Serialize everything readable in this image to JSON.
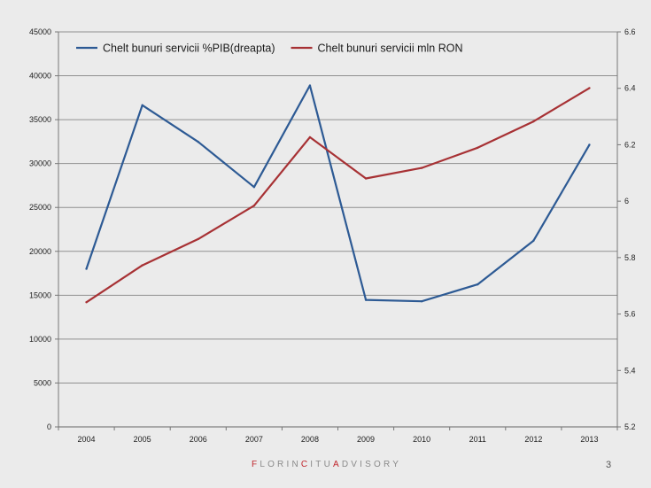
{
  "chart_data": {
    "type": "line",
    "x": [
      "2004",
      "2005",
      "2006",
      "2007",
      "2008",
      "2009",
      "2010",
      "2011",
      "2012",
      "2013"
    ],
    "series": [
      {
        "name": "Chelt bunuri servicii %PIB(dreapta)",
        "axis": "right",
        "color": "#2d5a94",
        "values": [
          5.76,
          6.34,
          6.21,
          6.05,
          6.41,
          5.65,
          5.645,
          5.705,
          5.86,
          6.2
        ]
      },
      {
        "name": "Chelt bunuri servicii mln RON",
        "axis": "left",
        "color": "#a73134",
        "values": [
          14200,
          18400,
          21400,
          25200,
          33000,
          28300,
          29500,
          31800,
          34800,
          38600
        ]
      }
    ],
    "y_left": {
      "ylim": [
        0,
        45000
      ],
      "ticks": [
        "0",
        "5000",
        "10000",
        "15000",
        "20000",
        "25000",
        "30000",
        "35000",
        "40000",
        "45000"
      ]
    },
    "y_right": {
      "ylim": [
        5.2,
        6.6
      ],
      "ticks": [
        "5.2",
        "5.4",
        "5.6",
        "5.8",
        "6",
        "6.2",
        "6.4",
        "6.6"
      ]
    },
    "grid": "horizontal",
    "legend": "top-left"
  },
  "footer": {
    "brand": [
      {
        "text": "F",
        "accent": true
      },
      {
        "text": "LORIN",
        "accent": false
      },
      {
        "text": "C",
        "accent": true
      },
      {
        "text": "ITU",
        "accent": false
      },
      {
        "text": "A",
        "accent": true
      },
      {
        "text": "DVISORY",
        "accent": false
      }
    ],
    "page_number": "3"
  },
  "colors": {
    "background": "#ebebeb",
    "brand_accent": "#c0272d"
  }
}
